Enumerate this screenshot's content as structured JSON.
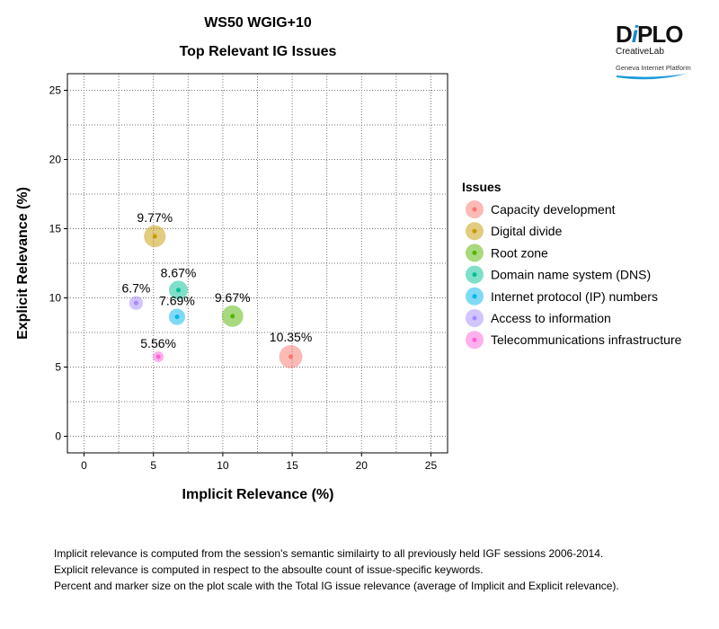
{
  "logo": {
    "brand": "DiPLO",
    "sub": "CreativeLab",
    "platform": "Geneva Internet Platform"
  },
  "chart_data": {
    "type": "scatter",
    "title": "WS50 WGIG+10",
    "subtitle": "Top Relevant IG Issues",
    "xlabel": "Implicit Relevance (%)",
    "ylabel": "Explicit Relevance (%)",
    "xlim": [
      -1.2,
      26.2
    ],
    "ylim": [
      -1.2,
      26.2
    ],
    "xticks": [
      0,
      5,
      10,
      15,
      20,
      25
    ],
    "yticks": [
      0,
      5,
      10,
      15,
      20,
      25
    ],
    "grid": true,
    "legend_title": "Issues",
    "legend_position": "right",
    "series": [
      {
        "name": "Capacity development",
        "x": 14.9,
        "y": 5.75,
        "label": "10.35%",
        "size": 10.35,
        "color": "#F8766D"
      },
      {
        "name": "Digital divide",
        "x": 5.1,
        "y": 14.45,
        "label": "9.77%",
        "size": 9.77,
        "color": "#C49A00"
      },
      {
        "name": "Root zone",
        "x": 10.7,
        "y": 8.68,
        "label": "9.67%",
        "size": 9.67,
        "color": "#53B400"
      },
      {
        "name": "Domain name system (DNS)",
        "x": 6.8,
        "y": 10.56,
        "label": "8.67%",
        "size": 8.67,
        "color": "#00C094"
      },
      {
        "name": "Internet protocol (IP) numbers",
        "x": 6.7,
        "y": 8.63,
        "label": "7.69%",
        "size": 7.69,
        "color": "#00B6EB"
      },
      {
        "name": "Access to information",
        "x": 3.75,
        "y": 9.63,
        "label": "6.7%",
        "size": 6.7,
        "color": "#A58AFF"
      },
      {
        "name": "Telecommunications infrastructure",
        "x": 5.35,
        "y": 5.75,
        "label": "5.56%",
        "size": 5.56,
        "color": "#FB61D7"
      }
    ]
  },
  "notes": [
    "Implicit relevance is computed from the session's semantic similairty to all previously held IGF sessions 2006-2014.",
    "Explicit relevance is computed in respect to the absoulte count of issue-specific keywords.",
    "Percent and marker size on the plot scale with the Total IG issue relevance (average of Implicit and Explicit relevance)."
  ]
}
